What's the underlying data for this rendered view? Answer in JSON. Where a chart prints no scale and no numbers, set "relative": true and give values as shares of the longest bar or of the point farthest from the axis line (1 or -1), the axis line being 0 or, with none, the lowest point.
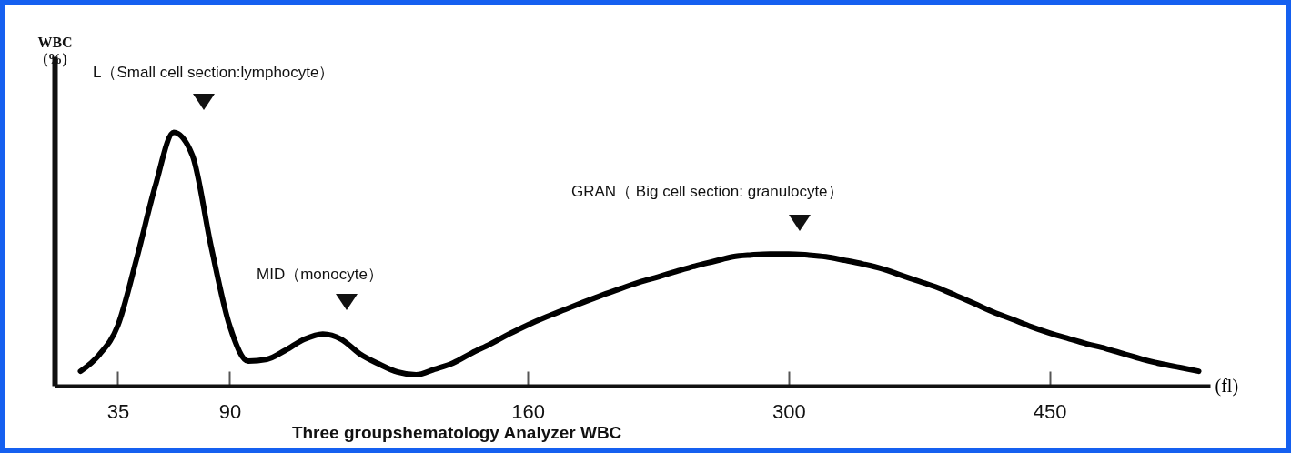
{
  "chart_data": {
    "type": "line",
    "relative": true,
    "title": "Three groupshematology Analyzer WBC",
    "xlabel": "(fl)",
    "ylabel": "WBC (%)",
    "categories": [
      null,
      null,
      "35",
      null,
      null,
      null,
      null,
      null,
      "90",
      null,
      null,
      null,
      null,
      null,
      null,
      null,
      null,
      null,
      null,
      null,
      null,
      null,
      null,
      null,
      "160",
      null,
      null,
      null,
      null,
      null,
      null,
      null,
      null,
      null,
      null,
      null,
      null,
      null,
      "300",
      null,
      null,
      null,
      null,
      null,
      null,
      null,
      null,
      null,
      null,
      null,
      null,
      null,
      "450",
      null,
      null,
      null,
      null,
      null,
      null,
      null,
      null
    ],
    "series": [
      {
        "color": "#000000",
        "values": [
          0.057,
          0.122,
          0.237,
          0.498,
          0.785,
          1,
          0.91,
          0.552,
          0.237,
          0.097,
          0.104,
          0.14,
          0.183,
          0.204,
          0.183,
          0.125,
          0.086,
          0.054,
          0.043,
          0.065,
          0.09,
          0.129,
          0.165,
          0.204,
          0.24,
          0.272,
          0.301,
          0.33,
          0.358,
          0.384,
          0.409,
          0.43,
          0.452,
          0.473,
          0.491,
          0.509,
          0.516,
          0.52,
          0.52,
          0.516,
          0.509,
          0.495,
          0.48,
          0.462,
          0.437,
          0.412,
          0.387,
          0.355,
          0.323,
          0.29,
          0.262,
          0.233,
          0.208,
          0.186,
          0.165,
          0.147,
          0.125,
          0.104,
          0.086,
          0.072,
          0.057
        ]
      }
    ],
    "annotations": [
      "L（Small cell section:lymphocyte）",
      "MID（monocyte）",
      "GRAN（ Big cell section: granulocyte）"
    ],
    "grid": false,
    "marker": "none",
    "line_style": "solid"
  }
}
